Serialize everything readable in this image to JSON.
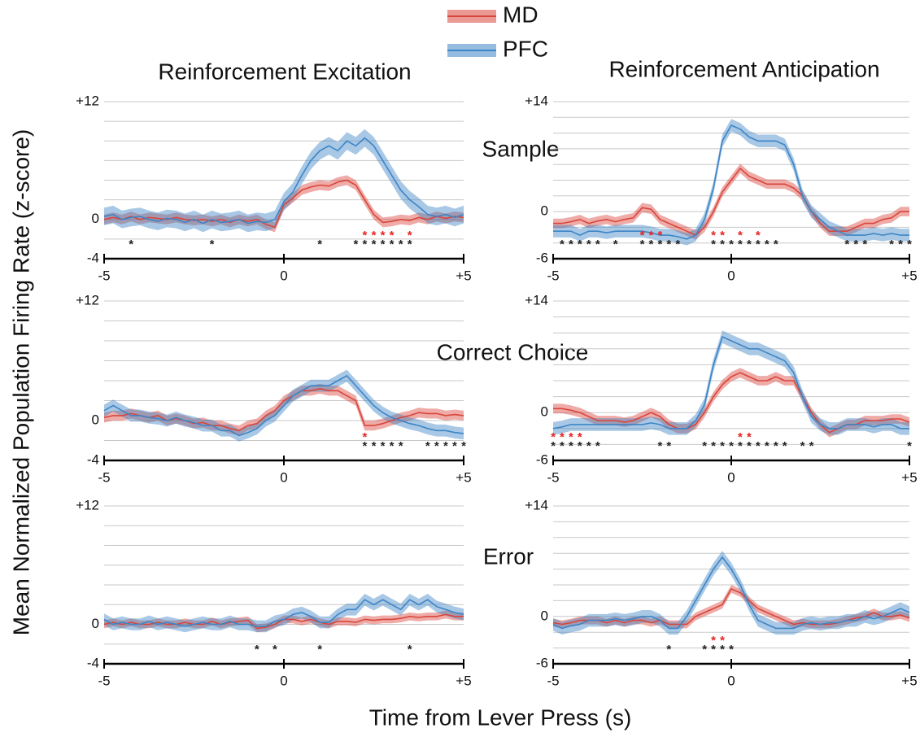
{
  "figure": {
    "ylabel": "Mean Normalized Population Firing Rate (z-score)",
    "xlabel": "Time from Lever Press (s)",
    "column_titles": [
      "Reinforcement Excitation",
      "Reinforcement Anticipation"
    ],
    "row_labels": [
      "Sample",
      "Correct Choice",
      "Error"
    ],
    "sig_marker": "*"
  },
  "chart_data": [
    {
      "type": "line",
      "x": [
        -5,
        -4.75,
        -4.5,
        -4.25,
        -4,
        -3.75,
        -3.5,
        -3.25,
        -3,
        -2.75,
        -2.5,
        -2.25,
        -2,
        -1.75,
        -1.5,
        -1.25,
        -1,
        -0.75,
        -0.5,
        -0.25,
        0,
        0.25,
        0.5,
        0.75,
        1,
        1.25,
        1.5,
        1.75,
        2,
        2.25,
        2.5,
        2.75,
        3,
        3.25,
        3.5,
        3.75,
        4,
        4.25,
        4.5,
        4.75,
        5
      ],
      "series": [
        {
          "name": "MD",
          "color": "#d9453b",
          "error": 0.5,
          "values": [
            0,
            0.2,
            0,
            0.3,
            0,
            0.2,
            0.1,
            0,
            0.2,
            0,
            -0.1,
            0,
            -0.2,
            0,
            -0.3,
            0,
            -0.2,
            0,
            -0.5,
            -0.8,
            1.5,
            2.2,
            3,
            3.3,
            3.5,
            3.4,
            3.8,
            4,
            3.5,
            2,
            0.5,
            -0.3,
            -0.2,
            0,
            -0.1,
            0.2,
            0,
            0.3,
            0.1,
            0.3,
            0.2
          ]
        },
        {
          "name": "PFC",
          "color": "#3d85c6",
          "error": 0.9,
          "values": [
            0.3,
            0.5,
            0,
            0.2,
            0.3,
            0,
            -0.2,
            0.1,
            0,
            -0.3,
            0,
            -0.4,
            0,
            -0.3,
            -0.2,
            0,
            -0.4,
            -0.2,
            -0.3,
            0,
            1.8,
            2.8,
            4.5,
            6,
            7,
            7.5,
            7,
            8,
            7.5,
            8.3,
            7.5,
            6,
            4.5,
            3,
            2,
            1.3,
            0.5,
            0.3,
            0.5,
            0.2,
            0.5
          ]
        }
      ],
      "xlim": [
        -5,
        5
      ],
      "xticks": [
        -5,
        0,
        {
          "value": 5,
          "label": "+5"
        }
      ],
      "ylim": [
        -4,
        12
      ],
      "yticks": [
        -4,
        0,
        {
          "value": 12,
          "label": "+12"
        }
      ],
      "ygrid": [
        -4,
        -2,
        0,
        2,
        4,
        6,
        8,
        10,
        12
      ],
      "sig": [
        {
          "color": "#222222",
          "x": [
            -4.25,
            -2,
            1,
            2,
            2.25,
            2.5,
            2.75,
            3,
            3.25,
            3.5
          ]
        },
        {
          "color": "#e82020",
          "x": [
            2.25,
            2.5,
            2.75,
            3,
            3.5
          ]
        }
      ]
    },
    {
      "type": "line",
      "x": [
        -5,
        -4.75,
        -4.5,
        -4.25,
        -4,
        -3.75,
        -3.5,
        -3.25,
        -3,
        -2.75,
        -2.5,
        -2.25,
        -2,
        -1.75,
        -1.5,
        -1.25,
        -1,
        -0.75,
        -0.5,
        -0.25,
        0,
        0.25,
        0.5,
        0.75,
        1,
        1.25,
        1.5,
        1.75,
        2,
        2.25,
        2.5,
        2.75,
        3,
        3.25,
        3.5,
        3.75,
        4,
        4.25,
        4.5,
        4.75,
        5
      ],
      "series": [
        {
          "color": "#d9453b",
          "error": 0.6,
          "values": [
            -1.5,
            -1.5,
            -1.3,
            -1,
            -1.5,
            -1.2,
            -1,
            -1.3,
            -1,
            -0.8,
            0.5,
            0.3,
            -1,
            -1.5,
            -2,
            -2.5,
            -3,
            -2,
            0,
            2.5,
            4,
            5.5,
            4.5,
            4,
            3.5,
            3.5,
            3.5,
            3,
            2,
            0,
            -1.5,
            -2.5,
            -2.5,
            -2.5,
            -2,
            -1.5,
            -1.5,
            -1,
            -0.8,
            0,
            0
          ]
        },
        {
          "color": "#3d85c6",
          "error": 0.8,
          "values": [
            -2.5,
            -2.5,
            -2.5,
            -3,
            -2.5,
            -2.5,
            -2.7,
            -2.5,
            -2.5,
            -2.5,
            -2.5,
            -2.7,
            -3,
            -3,
            -3.2,
            -3.5,
            -3,
            -1,
            3,
            9,
            11,
            10.5,
            9.5,
            9,
            9,
            9,
            8.5,
            6,
            2,
            0,
            -1,
            -2,
            -2.5,
            -3,
            -3,
            -3,
            -2.8,
            -3,
            -2.8,
            -3,
            -3
          ]
        }
      ],
      "xlim": [
        -5,
        5
      ],
      "xticks": [
        -5,
        0,
        {
          "value": 5,
          "label": "+5"
        }
      ],
      "ylim": [
        -6,
        14
      ],
      "yticks": [
        -6,
        0,
        {
          "value": 14,
          "label": "+14"
        }
      ],
      "ygrid": [
        -6,
        -4,
        -2,
        0,
        2,
        4,
        6,
        8,
        10,
        12,
        14
      ],
      "sig": [
        {
          "color": "#222222",
          "x": [
            -4.75,
            -4.5,
            -4.25,
            -4,
            -3.75,
            -3.25,
            -2.5,
            -2.25,
            -2,
            -1.75,
            -1.5,
            -0.5,
            -0.25,
            0,
            0.25,
            0.5,
            0.75,
            1,
            1.25,
            3.25,
            3.5,
            3.75,
            4.5,
            4.75,
            5
          ]
        },
        {
          "color": "#e82020",
          "x": [
            -2.5,
            -2.25,
            -2,
            -0.5,
            -0.25,
            0.25,
            0.75
          ]
        }
      ]
    },
    {
      "type": "line",
      "x": [
        -5,
        -4.75,
        -4.5,
        -4.25,
        -4,
        -3.75,
        -3.5,
        -3.25,
        -3,
        -2.75,
        -2.5,
        -2.25,
        -2,
        -1.75,
        -1.5,
        -1.25,
        -1,
        -0.75,
        -0.5,
        -0.25,
        0,
        0.25,
        0.5,
        0.75,
        1,
        1.25,
        1.5,
        1.75,
        2,
        2.25,
        2.5,
        2.75,
        3,
        3.25,
        3.5,
        3.75,
        4,
        4.25,
        4.5,
        4.75,
        5
      ],
      "series": [
        {
          "color": "#d9453b",
          "error": 0.5,
          "values": [
            0.3,
            0.5,
            0.5,
            0.7,
            0.5,
            0.3,
            0.5,
            0,
            0.2,
            0,
            -0.3,
            -0.2,
            -0.5,
            -0.5,
            -0.8,
            -1,
            -0.5,
            -0.3,
            0.5,
            1,
            2,
            2.5,
            3,
            3,
            3.2,
            3,
            3,
            2.5,
            2,
            -0.5,
            -0.5,
            -0.3,
            0,
            0.3,
            0.5,
            0.8,
            0.7,
            0.7,
            0.5,
            0.6,
            0.5
          ]
        },
        {
          "color": "#3d85c6",
          "error": 0.6,
          "values": [
            1,
            1.5,
            1,
            0.5,
            0.5,
            0.3,
            0.2,
            0,
            0.3,
            0,
            -0.2,
            -0.5,
            -0.5,
            -1,
            -1,
            -1.5,
            -1.2,
            -0.8,
            0,
            0.5,
            1.5,
            2.5,
            3,
            3.5,
            3.5,
            3.5,
            4,
            4.5,
            3.5,
            2.5,
            1.5,
            0.8,
            0.3,
            0,
            -0.3,
            -0.5,
            -0.8,
            -1,
            -1,
            -1.2,
            -1.3
          ]
        }
      ],
      "xlim": [
        -5,
        5
      ],
      "xticks": [
        -5,
        0,
        {
          "value": 5,
          "label": "+5"
        }
      ],
      "ylim": [
        -4,
        12
      ],
      "yticks": [
        -4,
        0,
        {
          "value": 12,
          "label": "+12"
        }
      ],
      "ygrid": [
        -4,
        -2,
        0,
        2,
        4,
        6,
        8,
        10,
        12
      ],
      "sig": [
        {
          "color": "#222222",
          "x": [
            2.25,
            2.5,
            2.75,
            3,
            3.25,
            4,
            4.25,
            4.5,
            4.75,
            5
          ]
        },
        {
          "color": "#e82020",
          "x": [
            2.25
          ]
        }
      ]
    },
    {
      "type": "line",
      "x": [
        -5,
        -4.75,
        -4.5,
        -4.25,
        -4,
        -3.75,
        -3.5,
        -3.25,
        -3,
        -2.75,
        -2.5,
        -2.25,
        -2,
        -1.75,
        -1.5,
        -1.25,
        -1,
        -0.75,
        -0.5,
        -0.25,
        0,
        0.25,
        0.5,
        0.75,
        1,
        1.25,
        1.5,
        1.75,
        2,
        2.25,
        2.5,
        2.75,
        3,
        3.25,
        3.5,
        3.75,
        4,
        4.25,
        4.5,
        4.75,
        5
      ],
      "series": [
        {
          "color": "#d9453b",
          "error": 0.6,
          "values": [
            0.5,
            0.5,
            0.3,
            0,
            -0.5,
            -1,
            -1,
            -1,
            -1.2,
            -1,
            -0.5,
            0,
            -0.5,
            -1.5,
            -2,
            -2,
            -1.5,
            0,
            2,
            3.5,
            4.5,
            5,
            4.5,
            4,
            4,
            4.5,
            4,
            4,
            2,
            0,
            -1.5,
            -2.5,
            -2,
            -1.5,
            -1.5,
            -1,
            -1,
            -1,
            -0.8,
            -0.8,
            -1.2
          ]
        },
        {
          "color": "#3d85c6",
          "error": 0.8,
          "values": [
            -2,
            -1.8,
            -1.5,
            -1.5,
            -1.5,
            -1.5,
            -1.5,
            -1.5,
            -1.5,
            -1.5,
            -1.5,
            -1.3,
            -1.5,
            -2,
            -2,
            -2,
            -1,
            1,
            6,
            9.5,
            9,
            8.5,
            8,
            8,
            7.5,
            7,
            6.5,
            5,
            2,
            -0.5,
            -1.5,
            -2,
            -2,
            -1.5,
            -1.5,
            -1.5,
            -1.8,
            -1.5,
            -1.5,
            -2,
            -2
          ]
        }
      ],
      "xlim": [
        -5,
        5
      ],
      "xticks": [
        -5,
        0,
        {
          "value": 5,
          "label": "+5"
        }
      ],
      "ylim": [
        -6,
        14
      ],
      "yticks": [
        -6,
        0,
        {
          "value": 14,
          "label": "+14"
        }
      ],
      "ygrid": [
        -6,
        -4,
        -2,
        0,
        2,
        4,
        6,
        8,
        10,
        12,
        14
      ],
      "sig": [
        {
          "color": "#222222",
          "x": [
            -5,
            -4.75,
            -4.5,
            -4.25,
            -4,
            -3.75,
            -2,
            -1.75,
            -0.75,
            -0.5,
            -0.25,
            0,
            0.25,
            0.5,
            0.75,
            1,
            1.25,
            1.5,
            2,
            2.25,
            5
          ]
        },
        {
          "color": "#e82020",
          "x": [
            -5,
            -4.75,
            -4.5,
            -4.25,
            0.25,
            0.5
          ]
        }
      ]
    },
    {
      "type": "line",
      "x": [
        -5,
        -4.75,
        -4.5,
        -4.25,
        -4,
        -3.75,
        -3.5,
        -3.25,
        -3,
        -2.75,
        -2.5,
        -2.25,
        -2,
        -1.75,
        -1.5,
        -1.25,
        -1,
        -0.75,
        -0.5,
        -0.25,
        0,
        0.25,
        0.5,
        0.75,
        1,
        1.25,
        1.5,
        1.75,
        2,
        2.25,
        2.5,
        2.75,
        3,
        3.25,
        3.5,
        3.75,
        4,
        4.25,
        4.5,
        4.75,
        5
      ],
      "series": [
        {
          "color": "#d9453b",
          "error": 0.4,
          "values": [
            0,
            0.2,
            0,
            0.2,
            0,
            0,
            0.2,
            0,
            0,
            0.2,
            0,
            0,
            0.3,
            0,
            0.2,
            0.3,
            0.4,
            -0.4,
            -0.3,
            0,
            0.5,
            0.5,
            0.3,
            0.5,
            0.2,
            0,
            0.3,
            0.3,
            0.2,
            0.5,
            0.4,
            0.5,
            0.5,
            0.6,
            0.8,
            0.7,
            0.8,
            0.8,
            1,
            0.8,
            0.8
          ]
        },
        {
          "color": "#3d85c6",
          "error": 0.6,
          "values": [
            0.5,
            0,
            0.2,
            0,
            0,
            0.3,
            0,
            0.2,
            0,
            -0.2,
            0,
            0.2,
            0,
            0,
            0.3,
            0,
            0,
            -0.2,
            -0.2,
            0.3,
            0.5,
            1,
            1.2,
            0.8,
            0.2,
            0.2,
            1,
            1.5,
            1.5,
            2.5,
            2,
            2.5,
            2,
            1.5,
            2.5,
            2,
            2.5,
            1.8,
            1.5,
            1.2,
            1
          ]
        }
      ],
      "xlim": [
        -5,
        5
      ],
      "xticks": [
        -5,
        0,
        {
          "value": 5,
          "label": "+5"
        }
      ],
      "ylim": [
        -4,
        12
      ],
      "yticks": [
        -4,
        0,
        {
          "value": 12,
          "label": "+12"
        }
      ],
      "ygrid": [
        -4,
        -2,
        0,
        2,
        4,
        6,
        8,
        10,
        12
      ],
      "sig": [
        {
          "color": "#222222",
          "x": [
            -0.75,
            -0.25,
            1,
            3.5
          ]
        }
      ]
    },
    {
      "type": "line",
      "x": [
        -5,
        -4.75,
        -4.5,
        -4.25,
        -4,
        -3.75,
        -3.5,
        -3.25,
        -3,
        -2.75,
        -2.5,
        -2.25,
        -2,
        -1.75,
        -1.5,
        -1.25,
        -1,
        -0.75,
        -0.5,
        -0.25,
        0,
        0.25,
        0.5,
        0.75,
        1,
        1.25,
        1.5,
        1.75,
        2,
        2.25,
        2.5,
        2.75,
        3,
        3.25,
        3.5,
        3.75,
        4,
        4.25,
        4.5,
        4.75,
        5
      ],
      "series": [
        {
          "color": "#d9453b",
          "error": 0.5,
          "values": [
            -0.8,
            -1,
            -0.8,
            -0.5,
            -0.5,
            -0.5,
            -0.8,
            -0.5,
            -0.8,
            -0.5,
            -0.5,
            -0.8,
            -0.5,
            -1,
            -1,
            -1,
            0,
            0.5,
            1,
            1.5,
            3.5,
            3,
            2,
            1,
            0.5,
            0,
            -0.5,
            -1,
            -0.8,
            -1,
            -1,
            -1,
            -0.8,
            -0.5,
            -0.2,
            0,
            0.5,
            0,
            0,
            0.2,
            -0.2
          ]
        },
        {
          "color": "#3d85c6",
          "error": 0.8,
          "values": [
            -1,
            -1.5,
            -1.2,
            -1,
            -0.5,
            -0.5,
            -0.5,
            -0.3,
            -0.5,
            -0.3,
            0,
            0,
            -0.5,
            -1.5,
            -1.5,
            0,
            2,
            4,
            6,
            7.5,
            6,
            4,
            1.5,
            -0.5,
            -1,
            -1.5,
            -1.5,
            -1.5,
            -1,
            -0.8,
            -1,
            -0.8,
            -0.8,
            -0.5,
            -0.5,
            0,
            -0.3,
            0,
            0.5,
            1,
            0.5
          ]
        }
      ],
      "xlim": [
        -5,
        5
      ],
      "xticks": [
        -5,
        0,
        {
          "value": 5,
          "label": "+5"
        }
      ],
      "ylim": [
        -6,
        14
      ],
      "yticks": [
        -6,
        0,
        {
          "value": 14,
          "label": "+14"
        }
      ],
      "ygrid": [
        -6,
        -4,
        -2,
        0,
        2,
        4,
        6,
        8,
        10,
        12,
        14
      ],
      "sig": [
        {
          "color": "#222222",
          "x": [
            -1.75,
            -0.75,
            -0.5,
            -0.25,
            0
          ]
        },
        {
          "color": "#e82020",
          "x": [
            -0.5,
            -0.25
          ]
        }
      ]
    }
  ]
}
